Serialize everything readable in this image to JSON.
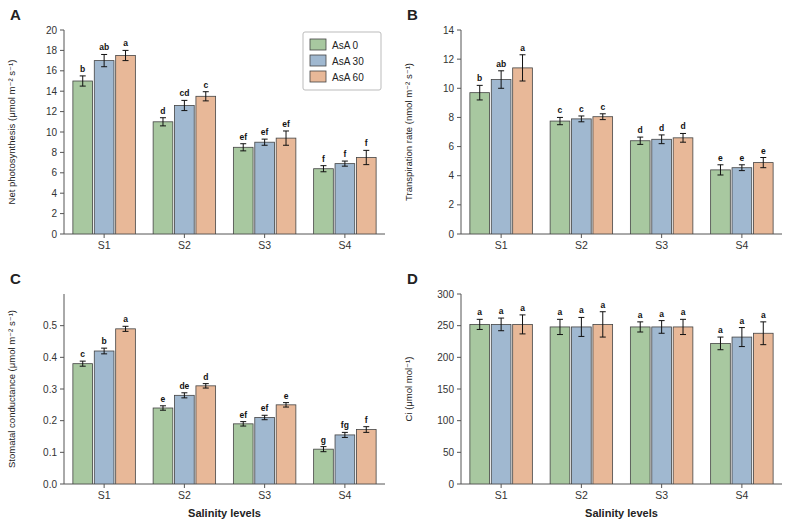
{
  "chart_data": [
    {
      "type": "bar",
      "title": "A",
      "ylabel": "Net photosynthesis (μmol m⁻² s⁻¹)",
      "categories": [
        "S1",
        "S2",
        "S3",
        "S4"
      ],
      "series": [
        {
          "name": "AsA 0",
          "color": "#a8c8a0",
          "values": [
            15.0,
            11.0,
            8.5,
            6.4
          ],
          "errors": [
            0.5,
            0.4,
            0.35,
            0.3
          ],
          "annotations": [
            "b",
            "d",
            "ef",
            "f"
          ]
        },
        {
          "name": "AsA 30",
          "color": "#a0b8d0",
          "values": [
            17.0,
            12.6,
            9.0,
            6.9
          ],
          "errors": [
            0.6,
            0.5,
            0.3,
            0.25
          ],
          "annotations": [
            "ab",
            "cd",
            "ef",
            "f"
          ]
        },
        {
          "name": "AsA 60",
          "color": "#e8b898",
          "values": [
            17.5,
            13.5,
            9.4,
            7.5
          ],
          "errors": [
            0.5,
            0.45,
            0.7,
            0.7
          ],
          "annotations": [
            "a",
            "c",
            "ef",
            "f"
          ]
        }
      ],
      "ylim": [
        0,
        20
      ],
      "yticks": [
        0,
        2,
        4,
        6,
        8,
        10,
        12,
        14,
        16,
        18,
        20
      ],
      "grid": false,
      "legend": "upper right"
    },
    {
      "type": "bar",
      "title": "B",
      "ylabel": "Transpiration rate (nmol m⁻² s⁻¹)",
      "categories": [
        "S1",
        "S2",
        "S3",
        "S4"
      ],
      "series": [
        {
          "color": "#a8c8a0",
          "values": [
            9.7,
            7.75,
            6.4,
            4.4
          ],
          "errors": [
            0.5,
            0.25,
            0.25,
            0.35
          ],
          "annotations": [
            "b",
            "c",
            "d",
            "e"
          ]
        },
        {
          "color": "#a0b8d0",
          "values": [
            10.6,
            7.9,
            6.5,
            4.55
          ],
          "errors": [
            0.6,
            0.2,
            0.3,
            0.2
          ],
          "annotations": [
            "ab",
            "c",
            "d",
            "e"
          ]
        },
        {
          "color": "#e8b898",
          "values": [
            11.4,
            8.05,
            6.6,
            4.9
          ],
          "errors": [
            0.9,
            0.2,
            0.3,
            0.35
          ],
          "annotations": [
            "a",
            "c",
            "d",
            "e"
          ]
        }
      ],
      "ylim": [
        0,
        14
      ],
      "yticks": [
        0,
        2,
        4,
        6,
        8,
        10,
        12,
        14
      ],
      "grid": false
    },
    {
      "type": "bar",
      "title": "C",
      "ylabel": "Stomatal conductance (μmol m⁻² s⁻¹)",
      "xlabel": "Salinity levels",
      "categories": [
        "S1",
        "S2",
        "S3",
        "S4"
      ],
      "series": [
        {
          "color": "#a8c8a0",
          "values": [
            0.38,
            0.24,
            0.19,
            0.11
          ],
          "errors": [
            0.008,
            0.007,
            0.007,
            0.008
          ],
          "annotations": [
            "c",
            "e",
            "ef",
            "g"
          ]
        },
        {
          "color": "#a0b8d0",
          "values": [
            0.42,
            0.28,
            0.21,
            0.155
          ],
          "errors": [
            0.009,
            0.008,
            0.007,
            0.008
          ],
          "annotations": [
            "b",
            "de",
            "ef",
            "fg"
          ]
        },
        {
          "color": "#e8b898",
          "values": [
            0.49,
            0.31,
            0.25,
            0.172
          ],
          "errors": [
            0.008,
            0.007,
            0.007,
            0.009
          ],
          "annotations": [
            "a",
            "d",
            "e",
            "f"
          ]
        }
      ],
      "ylim": [
        0.0,
        0.6
      ],
      "yticks": [
        {
          "value": 0.0,
          "label": "0.0"
        },
        0.1,
        0.2,
        0.3,
        0.4,
        0.5
      ],
      "grid": false
    },
    {
      "type": "bar",
      "title": "D",
      "ylabel": "Ci (μmol mol⁻¹)",
      "xlabel": "Salinity levels",
      "categories": [
        "S1",
        "S2",
        "S3",
        "S4"
      ],
      "series": [
        {
          "color": "#a8c8a0",
          "values": [
            252,
            248,
            248,
            222
          ],
          "errors": [
            8,
            12,
            8,
            10
          ],
          "annotations": [
            "a",
            "a",
            "a",
            "a"
          ]
        },
        {
          "color": "#a0b8d0",
          "values": [
            252,
            248,
            248,
            232
          ],
          "errors": [
            10,
            15,
            10,
            15
          ],
          "annotations": [
            "a",
            "a",
            "a",
            "a"
          ]
        },
        {
          "color": "#e8b898",
          "values": [
            252,
            252,
            248,
            238
          ],
          "errors": [
            15,
            20,
            12,
            18
          ],
          "annotations": [
            "a",
            "a",
            "a",
            "a"
          ]
        }
      ],
      "ylim": [
        0,
        300
      ],
      "yticks": [
        0,
        50,
        100,
        150,
        200,
        250,
        300
      ],
      "grid": false
    }
  ]
}
